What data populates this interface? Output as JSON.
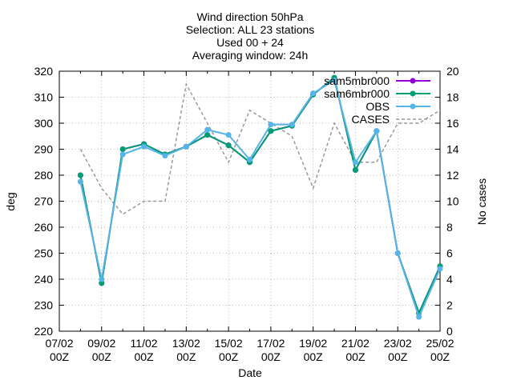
{
  "chart_data": {
    "type": "line",
    "title_lines": [
      "Wind direction 50hPa",
      "Selection: ALL     23 stations",
      "Used 00 + 24",
      "Averaging window: 24h"
    ],
    "xlabel": "Date",
    "ylabel": "deg",
    "y2label": "No cases",
    "ylim": [
      220,
      320
    ],
    "y2lim": [
      0,
      20
    ],
    "yticks": [
      220,
      230,
      240,
      250,
      260,
      270,
      280,
      290,
      300,
      310,
      320
    ],
    "y2ticks": [
      0,
      2,
      4,
      6,
      8,
      10,
      12,
      14,
      16,
      18,
      20
    ],
    "xlim": [
      0,
      18
    ],
    "xtick_labels": [
      {
        "top": "07/02",
        "bottom": "00Z"
      },
      {
        "top": "09/02",
        "bottom": "00Z"
      },
      {
        "top": "11/02",
        "bottom": "00Z"
      },
      {
        "top": "13/02",
        "bottom": "00Z"
      },
      {
        "top": "15/02",
        "bottom": "00Z"
      },
      {
        "top": "17/02",
        "bottom": "00Z"
      },
      {
        "top": "19/02",
        "bottom": "00Z"
      },
      {
        "top": "21/02",
        "bottom": "00Z"
      },
      {
        "top": "23/02",
        "bottom": "00Z"
      },
      {
        "top": "25/02",
        "bottom": "00Z"
      }
    ],
    "legend_position": "top-right",
    "x": [
      1,
      2,
      3,
      4,
      5,
      6,
      7,
      8,
      9,
      10,
      11,
      12,
      13,
      14,
      15,
      16,
      17,
      18
    ],
    "series": [
      {
        "name": "sam5mbr000",
        "axis": "left",
        "color": "#9400d3",
        "style": "solid-markers",
        "values": [
          280,
          238.5,
          290,
          292,
          288,
          291,
          295.5,
          291.5,
          285,
          297,
          299,
          311,
          317.5,
          282,
          297,
          250,
          227,
          245
        ]
      },
      {
        "name": "sam6mbr000",
        "axis": "left",
        "color": "#009e73",
        "style": "solid-markers",
        "values": [
          280,
          238.5,
          290,
          292,
          288,
          291,
          295.5,
          291.5,
          285,
          297,
          299,
          311,
          317.5,
          282,
          297,
          250,
          227,
          245
        ]
      },
      {
        "name": "OBS",
        "axis": "left",
        "color": "#56b4e9",
        "style": "solid-markers",
        "values": [
          277.5,
          240,
          288,
          291,
          287.5,
          291,
          297.5,
          295.5,
          286,
          299.5,
          299.5,
          311.5,
          316.5,
          285,
          297,
          250,
          225.5,
          244
        ]
      },
      {
        "name": "CASES",
        "axis": "right",
        "color": "#999999",
        "style": "dashed",
        "values": [
          14,
          11,
          9,
          10,
          10,
          19,
          16,
          13,
          17,
          16,
          15,
          11,
          16,
          13,
          13,
          16,
          16,
          17
        ]
      }
    ]
  }
}
